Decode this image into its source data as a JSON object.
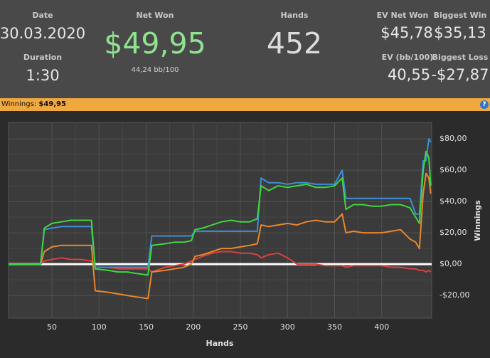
{
  "header": {
    "date": {
      "label": "Date",
      "value": "30.03.2020"
    },
    "duration": {
      "label": "Duration",
      "value": "1:30"
    },
    "net_won": {
      "label": "Net Won",
      "value": "$49,95",
      "sub": "44,24 bb/100"
    },
    "hands": {
      "label": "Hands",
      "value": "452"
    },
    "ev_net_won": {
      "label": "EV Net Won",
      "value": "$45,78"
    },
    "biggest_win": {
      "label": "Biggest Win",
      "value": "$35,13"
    },
    "ev_bb": {
      "label": "EV (bb/100)",
      "value": "40,55"
    },
    "biggest_loss": {
      "label": "Biggest Loss",
      "value": "-$27,87"
    }
  },
  "bar": {
    "label": "Winnings:",
    "value": "$49,95",
    "help": "?"
  },
  "chart_data": {
    "type": "line",
    "xlabel": "Hands",
    "ylabel": "Winnings",
    "x": [
      4,
      38,
      42,
      50,
      60,
      70,
      80,
      92,
      96,
      110,
      120,
      130,
      140,
      152,
      156,
      170,
      180,
      190,
      198,
      202,
      210,
      220,
      230,
      240,
      250,
      260,
      268,
      272,
      280,
      290,
      300,
      310,
      320,
      330,
      340,
      350,
      358,
      362,
      370,
      380,
      390,
      400,
      410,
      420,
      430,
      436,
      440,
      444,
      447,
      450,
      452
    ],
    "series": [
      {
        "color": "#d9403f",
        "values": [
          0,
          0,
          2,
          3,
          4,
          3,
          3,
          2,
          -2,
          -2,
          -3,
          -3,
          -3,
          -3,
          -5,
          -2,
          -1,
          0,
          2,
          3,
          5,
          7,
          8,
          8,
          7,
          7,
          6,
          4,
          6,
          7,
          4,
          0,
          0,
          0,
          -1,
          -1,
          -1,
          -2,
          -1,
          -1,
          -1,
          -1,
          -2,
          -2,
          -3,
          -3,
          -4,
          -4,
          -5,
          -4,
          -5
        ]
      },
      {
        "color": "#e8872e",
        "values": [
          0,
          0,
          8,
          11,
          12,
          12,
          12,
          12,
          -17,
          -18,
          -19,
          -20,
          -21,
          -22,
          -5,
          -4,
          -3,
          -2,
          0,
          5,
          6,
          8,
          10,
          10,
          11,
          12,
          13,
          25,
          24,
          25,
          26,
          25,
          27,
          28,
          27,
          27,
          32,
          20,
          21,
          20,
          20,
          20,
          21,
          22,
          16,
          14,
          10,
          45,
          58,
          55,
          45
        ]
      },
      {
        "color": "#3d8fd9",
        "values": [
          0,
          0,
          22,
          23,
          24,
          24,
          24,
          24,
          -2,
          -2,
          -2,
          -2,
          -2,
          -2,
          18,
          18,
          18,
          18,
          18,
          21,
          21,
          21,
          21,
          21,
          21,
          21,
          21,
          55,
          52,
          52,
          51,
          52,
          52,
          51,
          51,
          51,
          60,
          42,
          42,
          42,
          42,
          42,
          42,
          42,
          42,
          32,
          32,
          66,
          66,
          80,
          78
        ]
      },
      {
        "color": "#3fd63f",
        "values": [
          0,
          0,
          23,
          26,
          27,
          28,
          28,
          28,
          -3,
          -4,
          -5,
          -5,
          -6,
          -7,
          12,
          13,
          14,
          14,
          15,
          22,
          23,
          25,
          27,
          28,
          27,
          27,
          29,
          50,
          47,
          50,
          49,
          50,
          51,
          49,
          49,
          50,
          55,
          35,
          38,
          38,
          37,
          37,
          38,
          38,
          36,
          30,
          26,
          60,
          72,
          68,
          50
        ]
      }
    ],
    "xlim": [
      4,
      453
    ],
    "xticks": [
      50,
      100,
      150,
      200,
      250,
      300,
      350,
      400
    ],
    "ylim": [
      -34.5,
      90.5
    ],
    "yticks": [
      {
        "value": -20,
        "label": "-$20,00"
      },
      {
        "value": 0,
        "label": "$0,00"
      },
      {
        "value": 20,
        "label": "$20,00"
      },
      {
        "value": 40,
        "label": "$40,00"
      },
      {
        "value": 60,
        "label": "$60,00"
      },
      {
        "value": 80,
        "label": "$80,00"
      }
    ],
    "grid": true
  }
}
